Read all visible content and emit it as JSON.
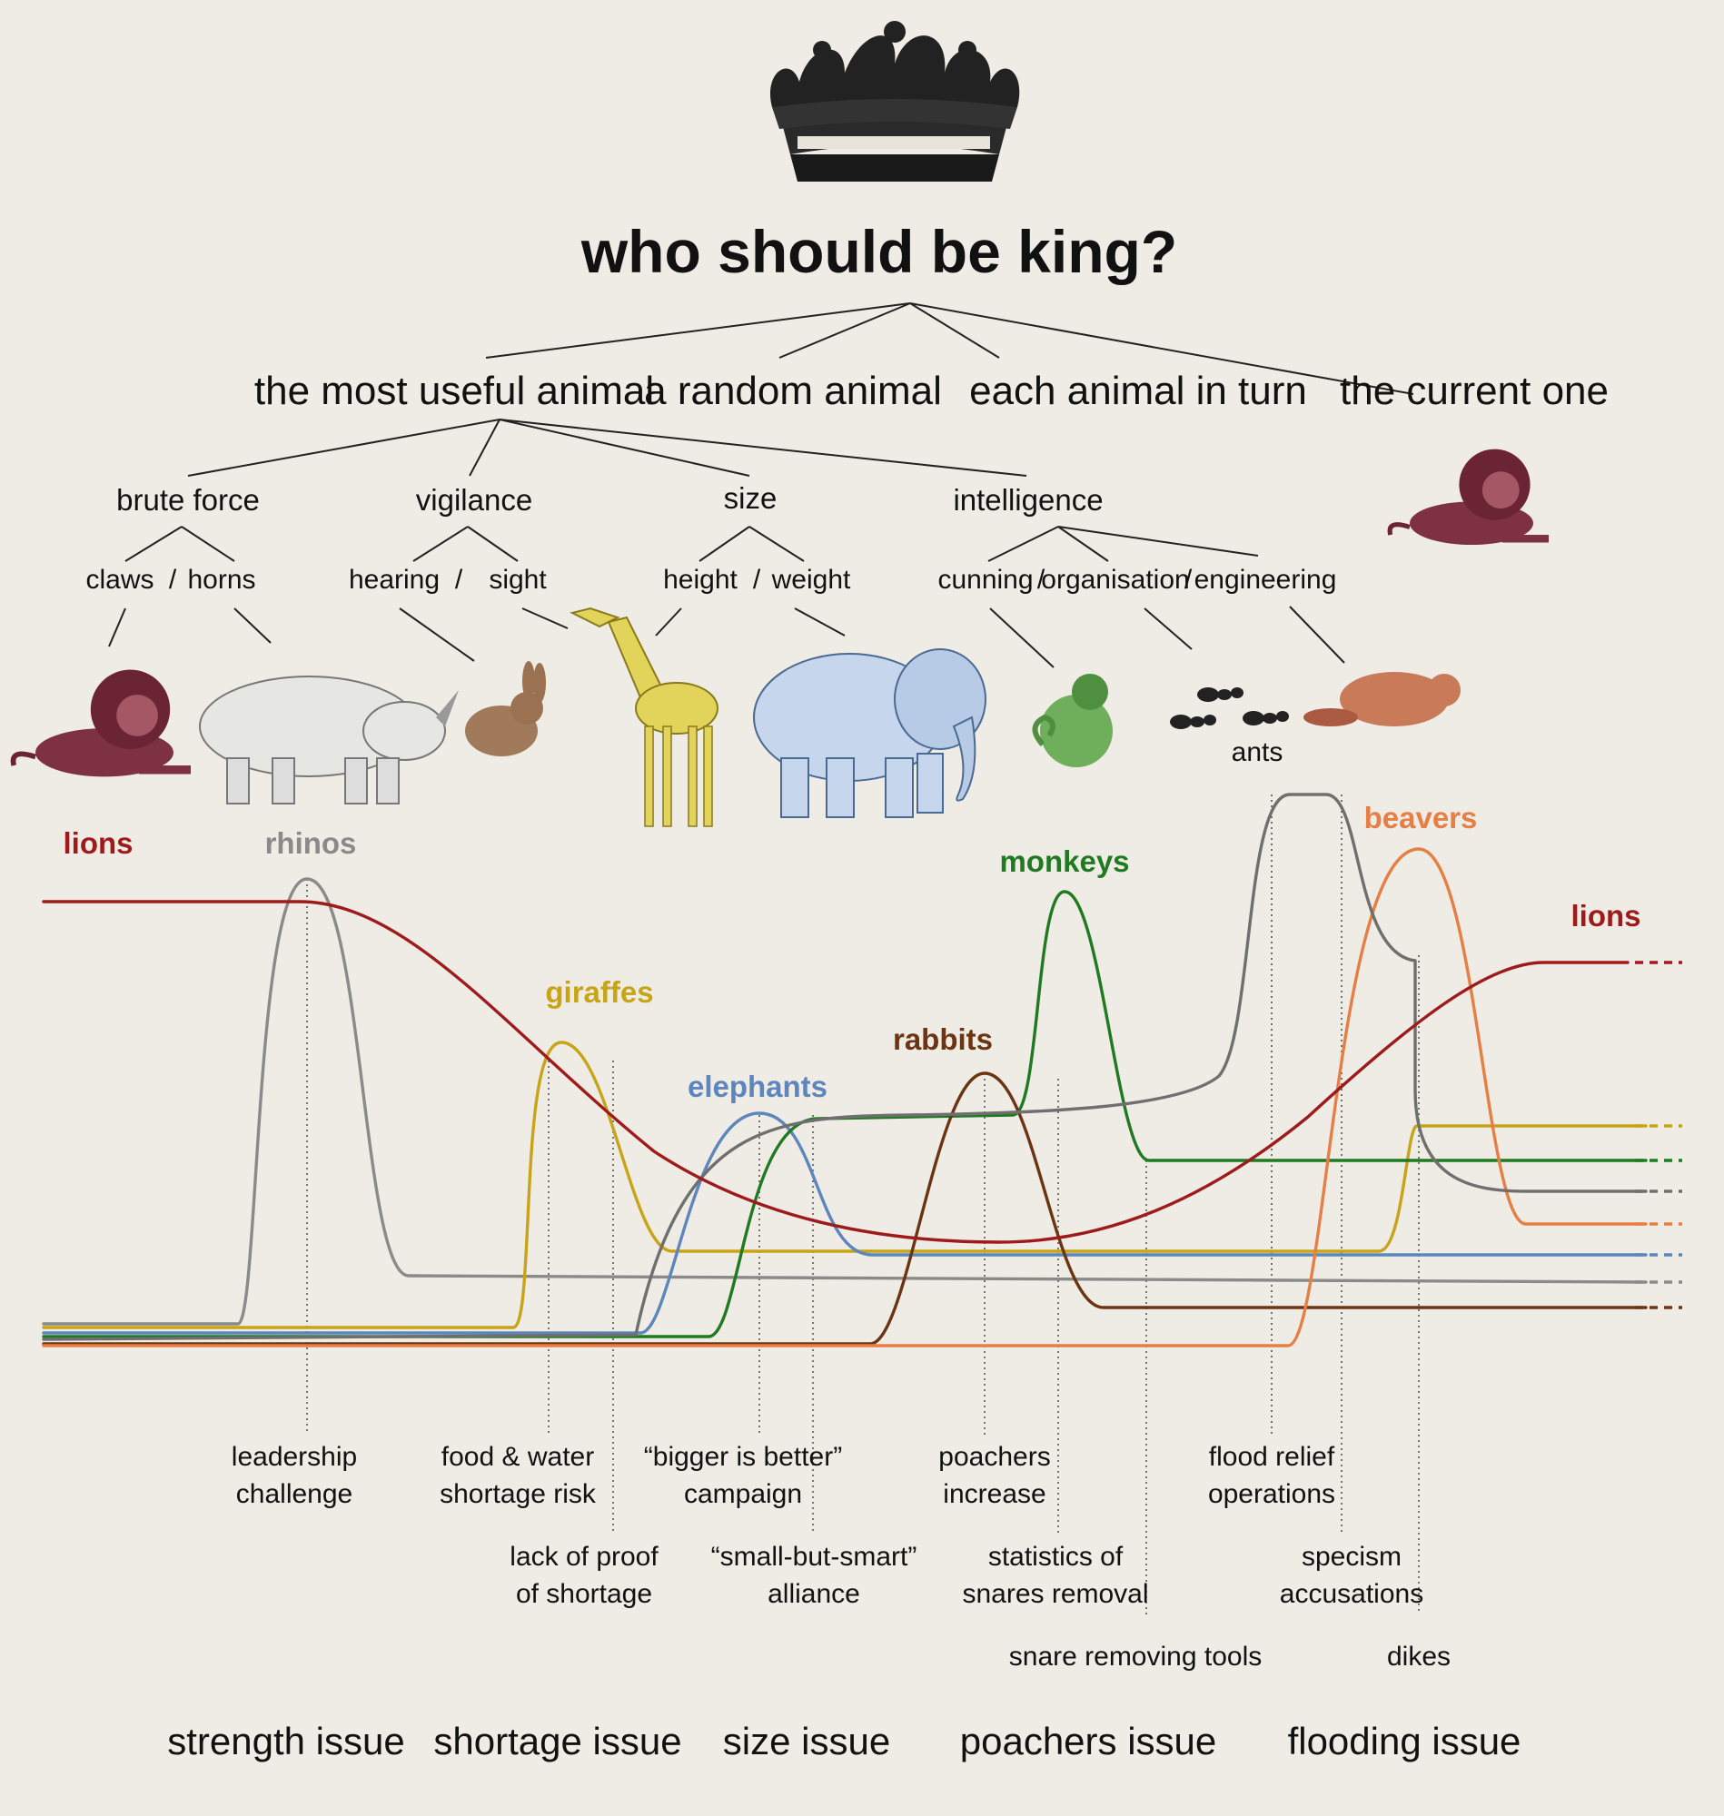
{
  "title": "who should be king?",
  "criteria": {
    "most_useful": "the most useful animal",
    "random": "a random animal",
    "in_turn": "each animal in turn",
    "current": "the current one"
  },
  "qualities": {
    "brute_force": "brute force",
    "vigilance": "vigilance",
    "size": "size",
    "intelligence": "intelligence"
  },
  "sub": {
    "claws": "claws",
    "horns": "horns",
    "hearing": "hearing",
    "sight": "sight",
    "height": "height",
    "weight": "weight",
    "cunning": "cunning",
    "organisation": "organisation",
    "engineering": "engineering",
    "slash": "/"
  },
  "ants_label": "ants",
  "colors": {
    "lions": "#9e1b1b",
    "rhinos": "#8a8a8a",
    "giraffes": "#c8a418",
    "elephants": "#5d86bd",
    "monkeys": "#1f7a22",
    "rabbits": "#6b3412",
    "ants": "#6f6f6f",
    "beavers": "#e67f45"
  },
  "icons": [
    "lion-icon",
    "rhino-icon",
    "rabbit-icon",
    "giraffe-icon",
    "elephant-icon",
    "monkey-icon",
    "ants-icon",
    "beaver-icon",
    "crown-icon"
  ],
  "series_labels": {
    "lions_left": "lions",
    "rhinos": "rhinos",
    "giraffes": "giraffes",
    "elephants": "elephants",
    "rabbits": "rabbits",
    "monkeys": "monkeys",
    "beavers": "beavers",
    "lions_right": "lions"
  },
  "events": {
    "leadership_1": "leadership",
    "leadership_2": "challenge",
    "food_1": "food & water",
    "food_2": "shortage risk",
    "lack_1": "lack of proof",
    "lack_2": "of shortage",
    "bigger_1": "“bigger is better”",
    "bigger_2": "campaign",
    "small_1": "“small-but-smart”",
    "small_2": "alliance",
    "poachers_1": "poachers",
    "poachers_2": "increase",
    "stats_1": "statistics of",
    "stats_2": "snares removal",
    "tools": "snare removing tools",
    "flood_1": "flood relief",
    "flood_2": "operations",
    "specism_1": "specism",
    "specism_2": "accusations",
    "dikes": "dikes"
  },
  "issues": {
    "strength": "strength issue",
    "shortage": "shortage issue",
    "size": "size issue",
    "poachers": "poachers issue",
    "flooding": "flooding issue"
  }
}
